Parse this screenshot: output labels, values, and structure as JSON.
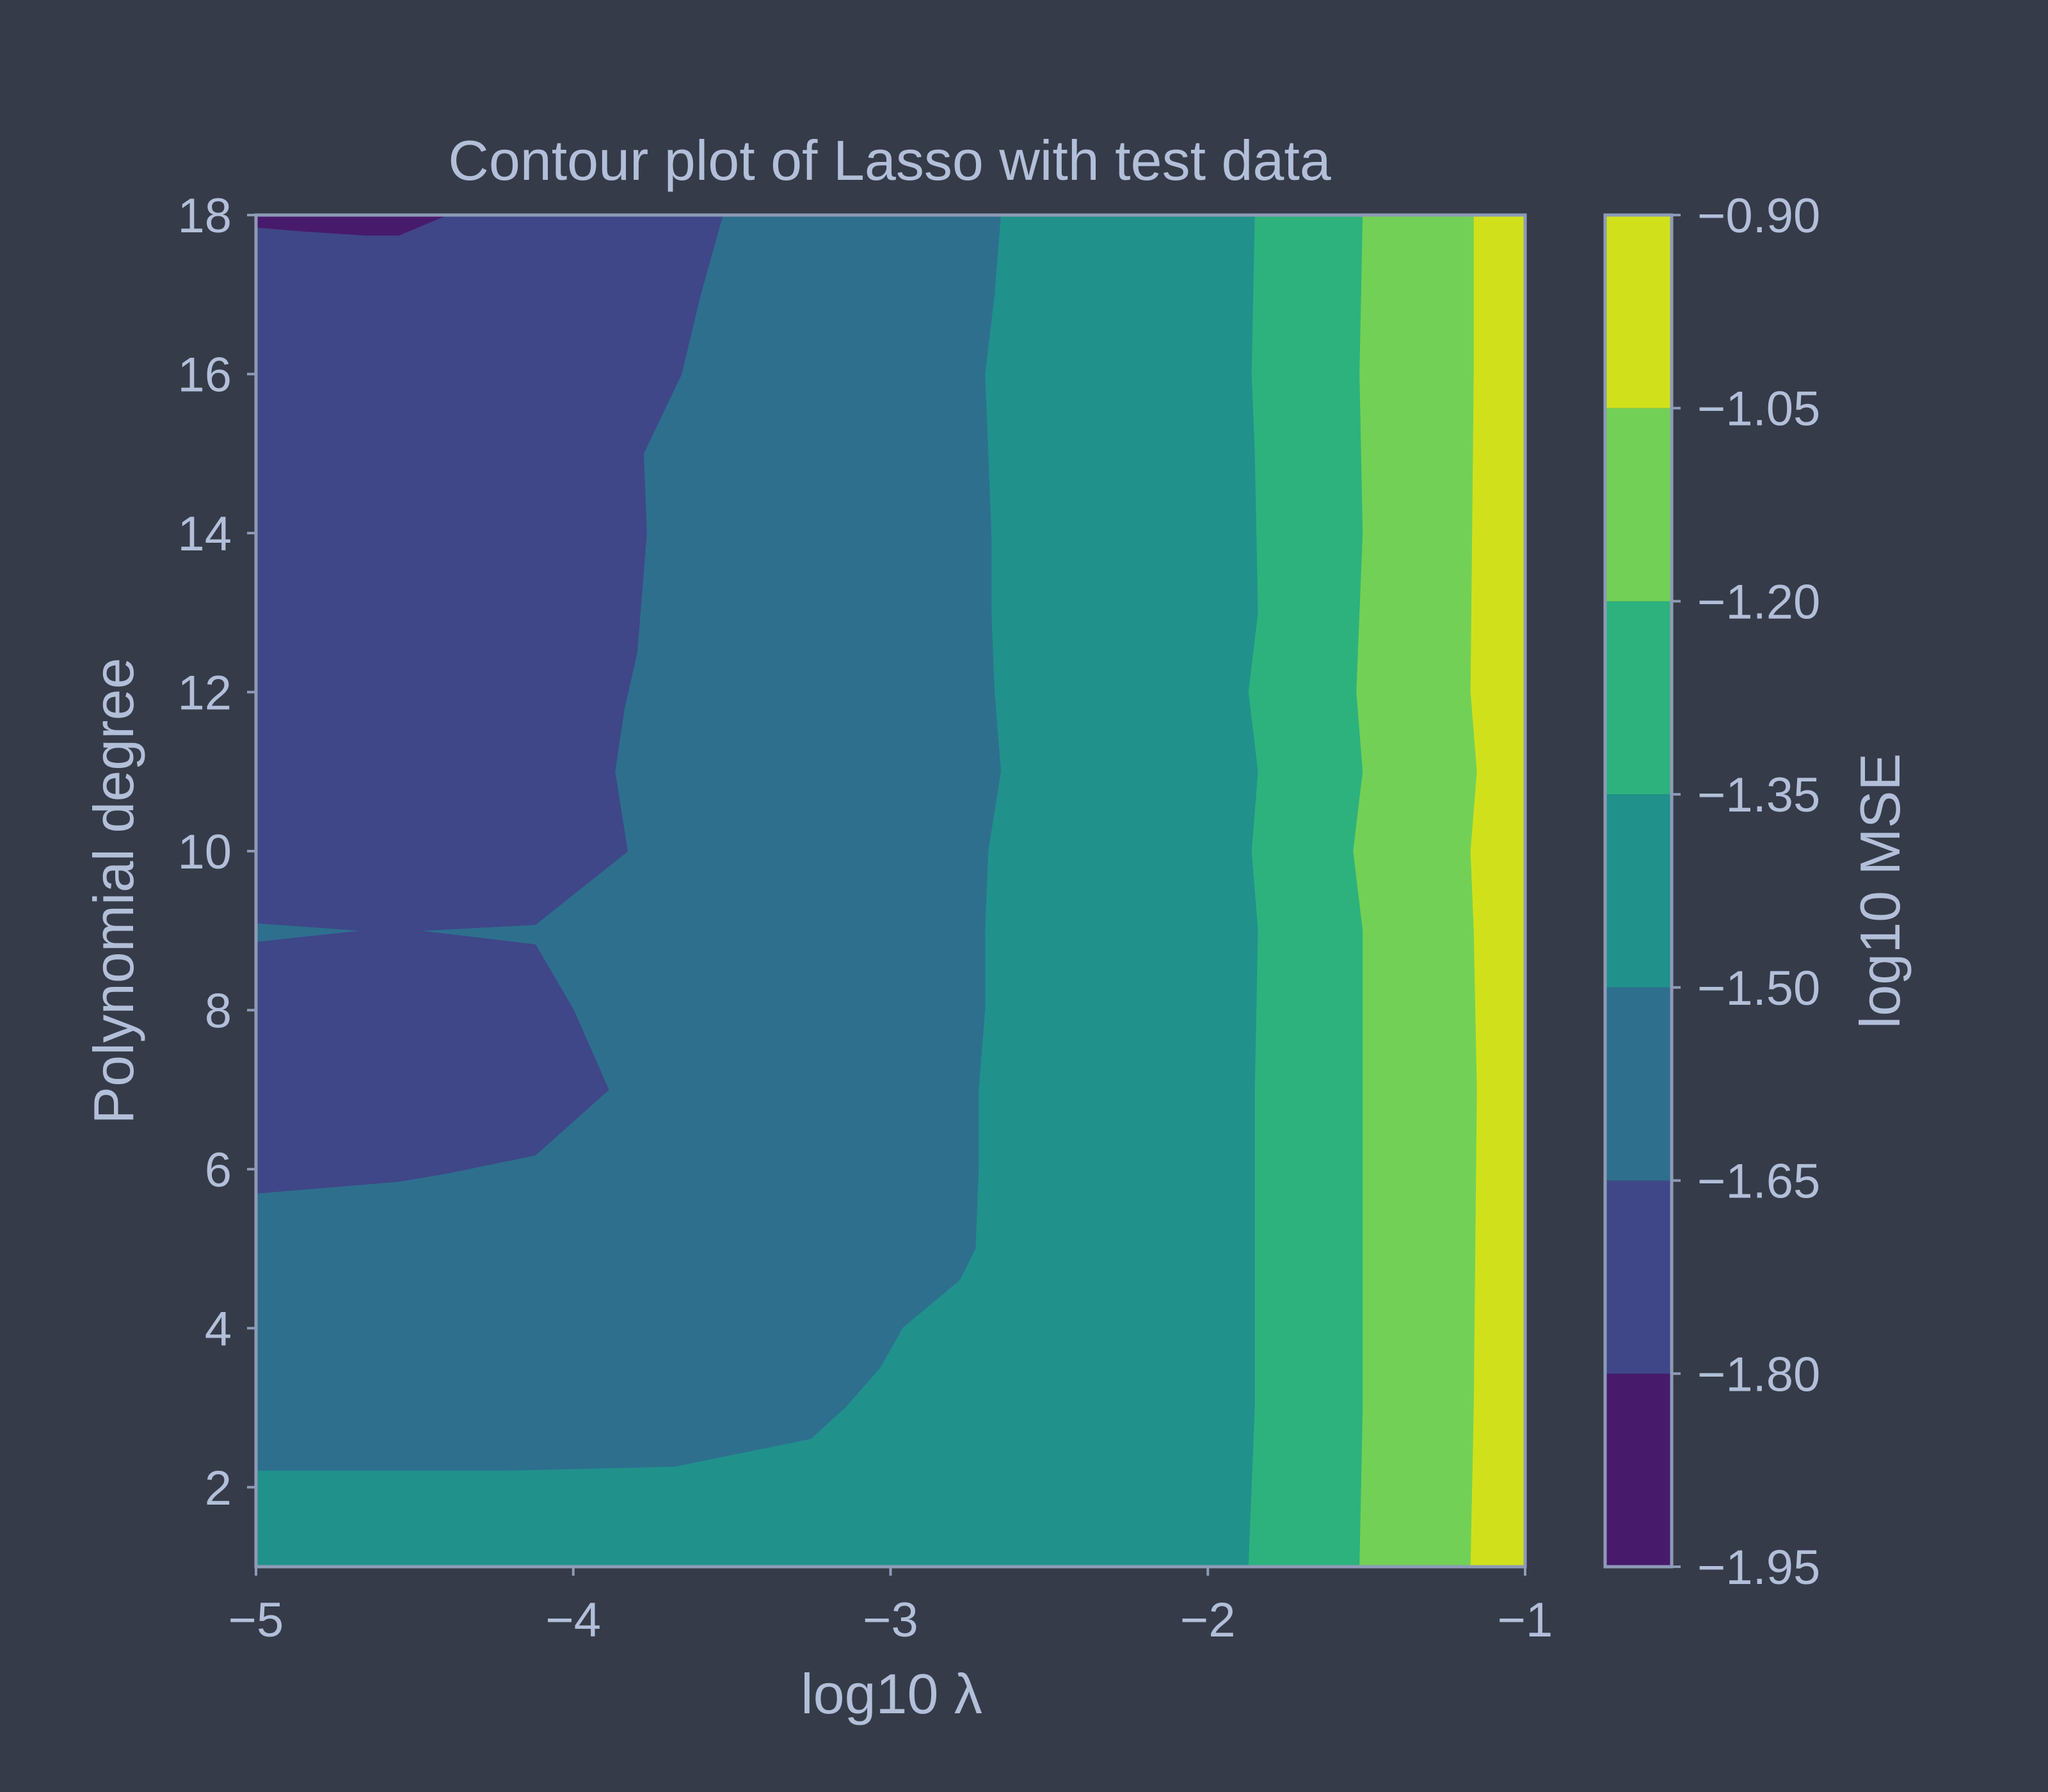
{
  "chart_data": {
    "type": "contour",
    "title": "Contour plot of Lasso with test data",
    "xlabel": "log10 λ",
    "ylabel": "Polynomial degree",
    "xlim": [
      -5,
      -1
    ],
    "ylim": [
      1,
      18
    ],
    "xticks": [
      -5,
      -4,
      -3,
      -2,
      -1
    ],
    "xtick_labels": [
      "−5",
      "−4",
      "−3",
      "−2",
      "−1"
    ],
    "yticks": [
      2,
      4,
      6,
      8,
      10,
      12,
      14,
      16,
      18
    ],
    "ytick_labels": [
      "2",
      "4",
      "6",
      "8",
      "10",
      "12",
      "14",
      "16",
      "18"
    ],
    "colorbar": {
      "label": "log10 MSE",
      "levels": [
        -1.95,
        -1.8,
        -1.65,
        -1.5,
        -1.35,
        -1.2,
        -1.05,
        -0.9
      ],
      "tick_labels": [
        "−1.95",
        "−1.80",
        "−1.65",
        "−1.50",
        "−1.35",
        "−1.20",
        "−1.05",
        "−0.90"
      ],
      "colors": [
        "#481a6c",
        "#3f4788",
        "#2e6f8e",
        "#21918c",
        "#2db27d",
        "#73d056",
        "#d0e11c"
      ]
    },
    "regions": [
      {
        "name": "level -1.80 to -1.65 (upper)",
        "color_index": 1,
        "points": [
          [
            -5,
            18
          ],
          [
            -3.53,
            18
          ],
          [
            -3.6,
            17
          ],
          [
            -3.66,
            16
          ],
          [
            -3.78,
            15
          ],
          [
            -3.77,
            14
          ],
          [
            -3.8,
            12.5
          ],
          [
            -3.84,
            11.8
          ],
          [
            -3.87,
            11
          ],
          [
            -3.83,
            10
          ],
          [
            -4.12,
            9.08
          ],
          [
            -4.5,
            9
          ],
          [
            -4.12,
            8.82
          ],
          [
            -4,
            8
          ],
          [
            -3.89,
            7
          ],
          [
            -4.12,
            6.18
          ],
          [
            -4.4,
            5.95
          ],
          [
            -4.55,
            5.85
          ],
          [
            -5,
            5.7
          ],
          [
            -5,
            8.85
          ],
          [
            -4.65,
            9
          ],
          [
            -5,
            9.1
          ]
        ]
      },
      {
        "name": "level -1.95 to -1.80 corner",
        "color_index": 0,
        "points": [
          [
            -5,
            18
          ],
          [
            -4.4,
            18
          ],
          [
            -4.55,
            17.75
          ],
          [
            -4.65,
            17.75
          ],
          [
            -4.85,
            17.8
          ],
          [
            -5,
            17.85
          ]
        ]
      },
      {
        "name": "level -1.50 to -1.35",
        "color_index": 3,
        "points": [
          [
            -2.65,
            18
          ],
          [
            -1.85,
            18
          ],
          [
            -1.86,
            16
          ],
          [
            -1.85,
            15
          ],
          [
            -1.84,
            13
          ],
          [
            -1.87,
            12
          ],
          [
            -1.84,
            11
          ],
          [
            -1.86,
            10
          ],
          [
            -1.84,
            9
          ],
          [
            -1.85,
            7
          ],
          [
            -1.85,
            5
          ],
          [
            -1.85,
            3
          ],
          [
            -1.87,
            1
          ],
          [
            -5,
            1
          ],
          [
            -5,
            2.2
          ],
          [
            -4.2,
            2.2
          ],
          [
            -3.68,
            2.25
          ],
          [
            -3.25,
            2.6
          ],
          [
            -3.14,
            3
          ],
          [
            -3.03,
            3.5
          ],
          [
            -2.96,
            4
          ],
          [
            -2.78,
            4.6
          ],
          [
            -2.73,
            5
          ],
          [
            -2.72,
            6
          ],
          [
            -2.72,
            7
          ],
          [
            -2.7,
            8
          ],
          [
            -2.7,
            9
          ],
          [
            -2.69,
            10
          ],
          [
            -2.65,
            11
          ],
          [
            -2.67,
            12
          ],
          [
            -2.68,
            13
          ],
          [
            -2.68,
            14
          ],
          [
            -2.69,
            15
          ],
          [
            -2.7,
            16
          ],
          [
            -2.67,
            17
          ]
        ]
      },
      {
        "name": "level -1.35 to -1.20",
        "color_index": 4,
        "points": [
          [
            -1.85,
            18
          ],
          [
            -1.51,
            18
          ],
          [
            -1.52,
            16
          ],
          [
            -1.51,
            14
          ],
          [
            -1.53,
            12
          ],
          [
            -1.51,
            11
          ],
          [
            -1.54,
            10
          ],
          [
            -1.51,
            9
          ],
          [
            -1.51,
            7
          ],
          [
            -1.51,
            5
          ],
          [
            -1.51,
            3
          ],
          [
            -1.52,
            1
          ],
          [
            -1.87,
            1
          ],
          [
            -1.85,
            3
          ],
          [
            -1.85,
            5
          ],
          [
            -1.85,
            7
          ],
          [
            -1.84,
            9
          ],
          [
            -1.86,
            10
          ],
          [
            -1.84,
            11
          ],
          [
            -1.87,
            12
          ],
          [
            -1.84,
            13
          ],
          [
            -1.85,
            15
          ],
          [
            -1.86,
            16
          ]
        ]
      },
      {
        "name": "level -1.20 to -1.05",
        "color_index": 5,
        "points": [
          [
            -1.51,
            18
          ],
          [
            -1.16,
            18
          ],
          [
            -1.16,
            16
          ],
          [
            -1.17,
            12
          ],
          [
            -1.15,
            11
          ],
          [
            -1.17,
            10
          ],
          [
            -1.16,
            9
          ],
          [
            -1.15,
            7
          ],
          [
            -1.16,
            3
          ],
          [
            -1.17,
            1
          ],
          [
            -1.52,
            1
          ],
          [
            -1.51,
            3
          ],
          [
            -1.51,
            5
          ],
          [
            -1.51,
            7
          ],
          [
            -1.51,
            9
          ],
          [
            -1.54,
            10
          ],
          [
            -1.51,
            11
          ],
          [
            -1.53,
            12
          ],
          [
            -1.51,
            14
          ],
          [
            -1.52,
            16
          ]
        ]
      },
      {
        "name": "level -1.05 to -0.90",
        "color_index": 6,
        "points": [
          [
            -1.16,
            18
          ],
          [
            -1,
            18
          ],
          [
            -1,
            1
          ],
          [
            -1.17,
            1
          ],
          [
            -1.16,
            3
          ],
          [
            -1.15,
            7
          ],
          [
            -1.16,
            9
          ],
          [
            -1.17,
            10
          ],
          [
            -1.15,
            11
          ],
          [
            -1.17,
            12
          ],
          [
            -1.16,
            16
          ]
        ]
      }
    ]
  }
}
